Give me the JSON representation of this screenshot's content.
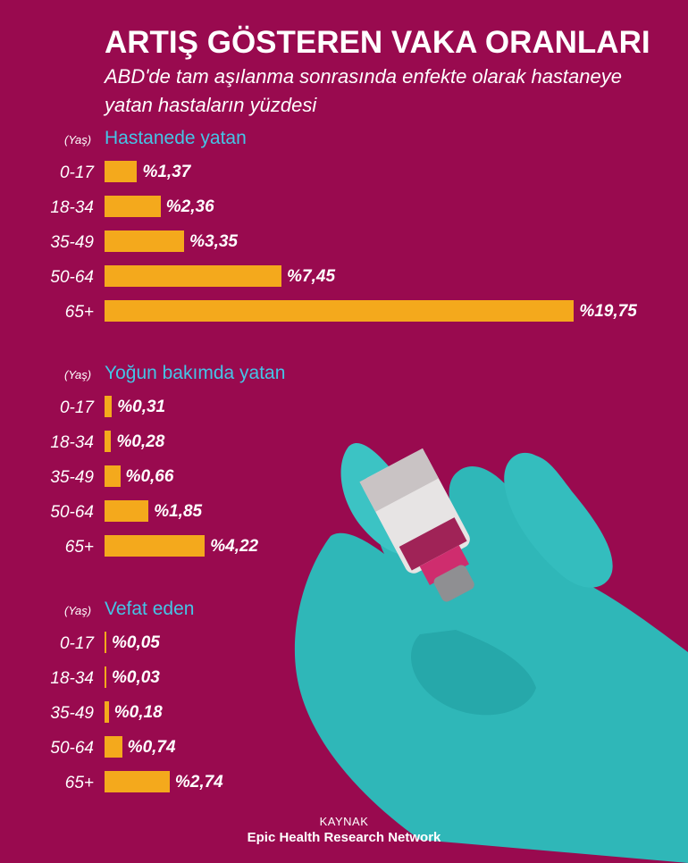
{
  "title": "ARTIŞ GÖSTEREN VAKA ORANLARI",
  "subtitle": "ABD'de tam aşılanma sonrasında enfekte olarak hastaneye yatan hastaların yüzdesi",
  "age_label": "(Yaş)",
  "colors": {
    "background": "#990a4f",
    "bar": "#f4a91c",
    "section_title": "#45c4e6",
    "glove": "#2fb7b8"
  },
  "chart_data": [
    {
      "type": "bar",
      "orientation": "horizontal",
      "title": "Hastanede yatan",
      "categories": [
        "0-17",
        "18-34",
        "35-49",
        "50-64",
        "65+"
      ],
      "values": [
        1.37,
        2.36,
        3.35,
        7.45,
        19.75
      ],
      "labels": [
        "%1,37",
        "%2,36",
        "%3,35",
        "%7,45",
        "%19,75"
      ]
    },
    {
      "type": "bar",
      "orientation": "horizontal",
      "title": "Yoğun bakımda yatan",
      "categories": [
        "0-17",
        "18-34",
        "35-49",
        "50-64",
        "65+"
      ],
      "values": [
        0.31,
        0.28,
        0.66,
        1.85,
        4.22
      ],
      "labels": [
        "%0,31",
        "%0,28",
        "%0,66",
        "%1,85",
        "%4,22"
      ]
    },
    {
      "type": "bar",
      "orientation": "horizontal",
      "title": "Vefat eden",
      "categories": [
        "0-17",
        "18-34",
        "35-49",
        "50-64",
        "65+"
      ],
      "values": [
        0.05,
        0.03,
        0.18,
        0.74,
        2.74
      ],
      "labels": [
        "%0,05",
        "%0,03",
        "%0,18",
        "%0,74",
        "%2,74"
      ]
    }
  ],
  "source": {
    "label": "KAYNAK",
    "name": "Epic Health Research Network"
  }
}
